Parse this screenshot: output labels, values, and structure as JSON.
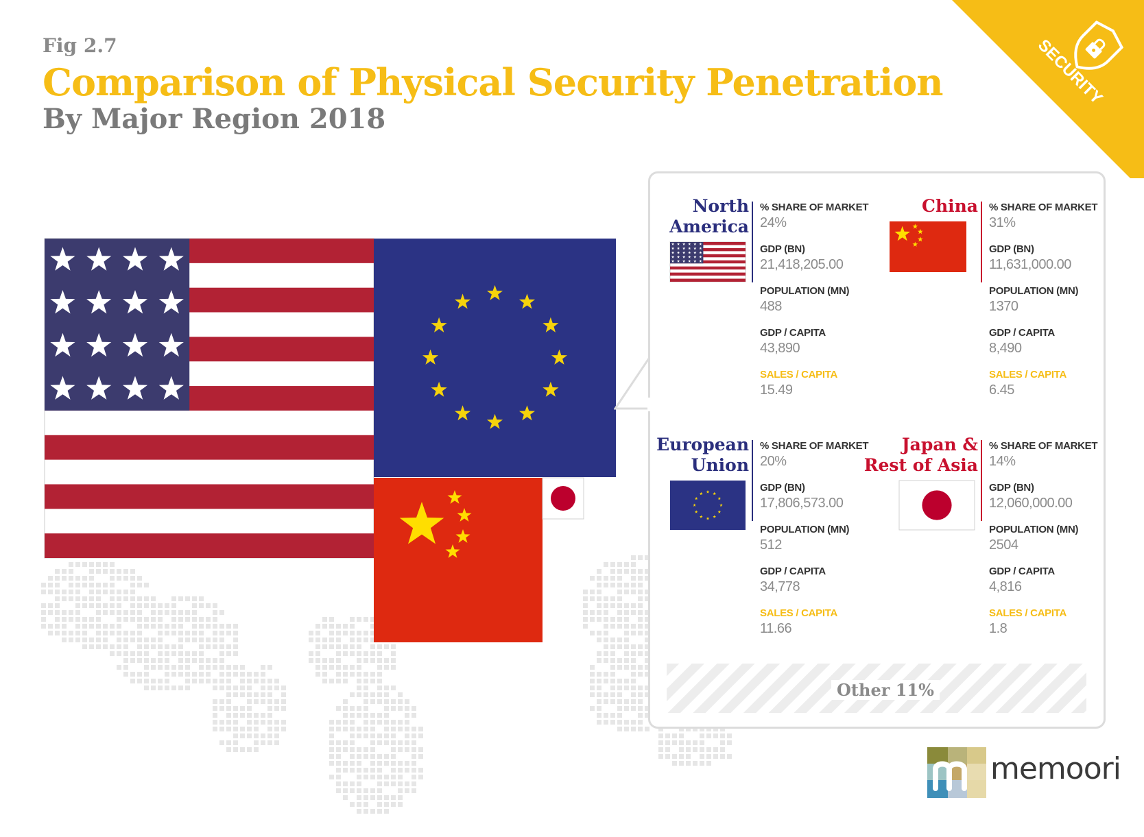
{
  "figure": {
    "fig_label": "Fig 2.7",
    "title": "Comparison of Physical Security Penetration",
    "subtitle": "By Major Region 2018",
    "badge_text": "SECURITY",
    "logo_text": "memoori"
  },
  "colors": {
    "accent": "#f6bd16",
    "grey_text": "#8a8a8a",
    "navy": "#2b2f7d",
    "red": "#c8102e",
    "us_blue": "#3c3b6e",
    "us_red": "#b22234",
    "eu_blue": "#2b3384",
    "china_red": "#de2910"
  },
  "labels": {
    "share": "% SHARE OF MARKET",
    "gdp": "GDP (BN)",
    "population": "POPULATION (MN)",
    "gdp_capita": "GDP / CAPITA",
    "sales_capita": "SALES / CAPITA"
  },
  "regions": [
    {
      "name_line1": "North",
      "name_line2": "America",
      "name_color": "#2b2f7d",
      "flag": "us-flag-icon",
      "share": "24%",
      "gdp": "21,418,205.00",
      "population": "488",
      "gdp_capita": "43,890",
      "sales_capita": "15.49"
    },
    {
      "name_line1": "",
      "name_line2": "China",
      "name_color": "#c8102e",
      "flag": "china-flag-icon",
      "share": "31%",
      "gdp": "11,631,000.00",
      "population": "1370",
      "gdp_capita": "8,490",
      "sales_capita": "6.45"
    },
    {
      "name_line1": "European",
      "name_line2": "Union",
      "name_color": "#2b2f7d",
      "flag": "eu-flag-icon",
      "share": "20%",
      "gdp": "17,806,573.00",
      "population": "512",
      "gdp_capita": "34,778",
      "sales_capita": "11.66"
    },
    {
      "name_line1": "Japan &",
      "name_line2": "Rest of Asia",
      "name_color": "#c8102e",
      "flag": "japan-flag-icon",
      "share": "14%",
      "gdp": "12,060,000.00",
      "population": "2504",
      "gdp_capita": "4,816",
      "sales_capita": "1.8"
    }
  ],
  "other": {
    "label": "Other 11%"
  },
  "chart_data": {
    "type": "treemap",
    "title": "Comparison of Physical Security Penetration",
    "subtitle": "By Major Region 2018",
    "categories": [
      "China",
      "North America",
      "European Union",
      "Japan & Rest of Asia",
      "Other"
    ],
    "values": [
      31,
      24,
      20,
      14,
      11
    ],
    "unit": "% share of market",
    "series": [
      {
        "name": "GDP (BN)",
        "values": [
          11631000.0,
          21418205.0,
          17806573.0,
          12060000.0,
          null
        ]
      },
      {
        "name": "POPULATION (MN)",
        "values": [
          1370,
          488,
          512,
          2504,
          null
        ]
      },
      {
        "name": "GDP / CAPITA",
        "values": [
          8490,
          43890,
          34778,
          4816,
          null
        ]
      },
      {
        "name": "SALES / CAPITA",
        "values": [
          6.45,
          15.49,
          11.66,
          1.8,
          null
        ]
      }
    ],
    "legend": "callout-panel-right"
  }
}
